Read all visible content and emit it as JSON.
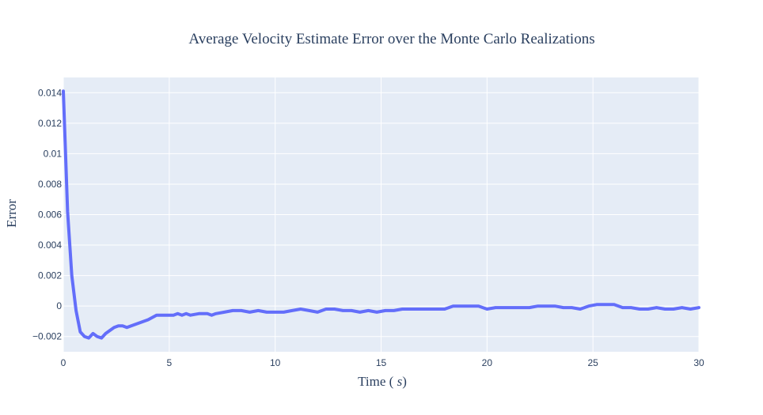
{
  "chart_data": {
    "type": "line",
    "title": "Average Velocity Estimate Error over the Monte Carlo Realizations",
    "xlabel": "Time (s)",
    "ylabel": "Error",
    "xlim": [
      0,
      30
    ],
    "ylim": [
      -0.003,
      0.015
    ],
    "x_ticks": [
      0,
      5,
      10,
      15,
      20,
      25,
      30
    ],
    "y_ticks": [
      -0.002,
      0,
      0.002,
      0.004,
      0.006,
      0.008,
      0.01,
      0.012,
      0.014
    ],
    "x_tick_labels": [
      "0",
      "5",
      "10",
      "15",
      "20",
      "25",
      "30"
    ],
    "y_tick_labels": [
      "−0.002",
      "0",
      "0.002",
      "0.004",
      "0.006",
      "0.008",
      "0.01",
      "0.012",
      "0.014"
    ],
    "grid": true,
    "legend": "none",
    "colors": {
      "line": "#636efa",
      "plot_bg": "#e5ecf6",
      "grid": "#ffffff",
      "text": "#2a3f5f"
    },
    "series": [
      {
        "x": [
          0,
          0.2,
          0.4,
          0.6,
          0.8,
          1.0,
          1.2,
          1.4,
          1.6,
          1.8,
          2.0,
          2.2,
          2.4,
          2.6,
          2.8,
          3.0,
          3.2,
          3.6,
          4.0,
          4.4,
          4.8,
          5.2,
          5.4,
          5.6,
          5.8,
          6.0,
          6.4,
          6.8,
          7.0,
          7.2,
          7.6,
          8.0,
          8.4,
          8.8,
          9.2,
          9.6,
          10.0,
          10.4,
          10.8,
          11.2,
          11.6,
          12.0,
          12.4,
          12.8,
          13.2,
          13.6,
          14.0,
          14.4,
          14.8,
          15.2,
          15.6,
          16.0,
          16.4,
          16.8,
          17.2,
          17.6,
          18.0,
          18.4,
          18.8,
          19.2,
          19.6,
          20.0,
          20.4,
          20.8,
          21.2,
          21.6,
          22.0,
          22.4,
          22.8,
          23.2,
          23.6,
          24.0,
          24.4,
          24.8,
          25.2,
          25.6,
          26.0,
          26.4,
          26.8,
          27.2,
          27.6,
          28.0,
          28.4,
          28.8,
          29.2,
          29.6,
          30.0
        ],
        "y": [
          0.0141,
          0.0062,
          0.002,
          -0.0003,
          -0.0017,
          -0.002,
          -0.0021,
          -0.0018,
          -0.002,
          -0.0021,
          -0.0018,
          -0.0016,
          -0.0014,
          -0.0013,
          -0.0013,
          -0.0014,
          -0.0013,
          -0.0011,
          -0.0009,
          -0.0006,
          -0.0006,
          -0.0006,
          -0.0005,
          -0.0006,
          -0.0005,
          -0.0006,
          -0.0005,
          -0.0005,
          -0.0006,
          -0.0005,
          -0.0004,
          -0.0003,
          -0.0003,
          -0.0004,
          -0.0003,
          -0.0004,
          -0.0004,
          -0.0004,
          -0.0003,
          -0.0002,
          -0.0003,
          -0.0004,
          -0.0002,
          -0.0002,
          -0.0003,
          -0.0003,
          -0.0004,
          -0.0003,
          -0.0004,
          -0.0003,
          -0.0003,
          -0.0002,
          -0.0002,
          -0.0002,
          -0.0002,
          -0.0002,
          -0.0002,
          0.0,
          0.0,
          0.0,
          0.0,
          -0.0002,
          -0.0001,
          -0.0001,
          -0.0001,
          -0.0001,
          -0.0001,
          0.0,
          0.0,
          0.0,
          -0.0001,
          -0.0001,
          -0.0002,
          0.0,
          0.0001,
          0.0001,
          0.0001,
          -0.0001,
          -0.0001,
          -0.0002,
          -0.0002,
          -0.0001,
          -0.0002,
          -0.0002,
          -0.0001,
          -0.0002,
          -0.0001
        ]
      }
    ]
  }
}
